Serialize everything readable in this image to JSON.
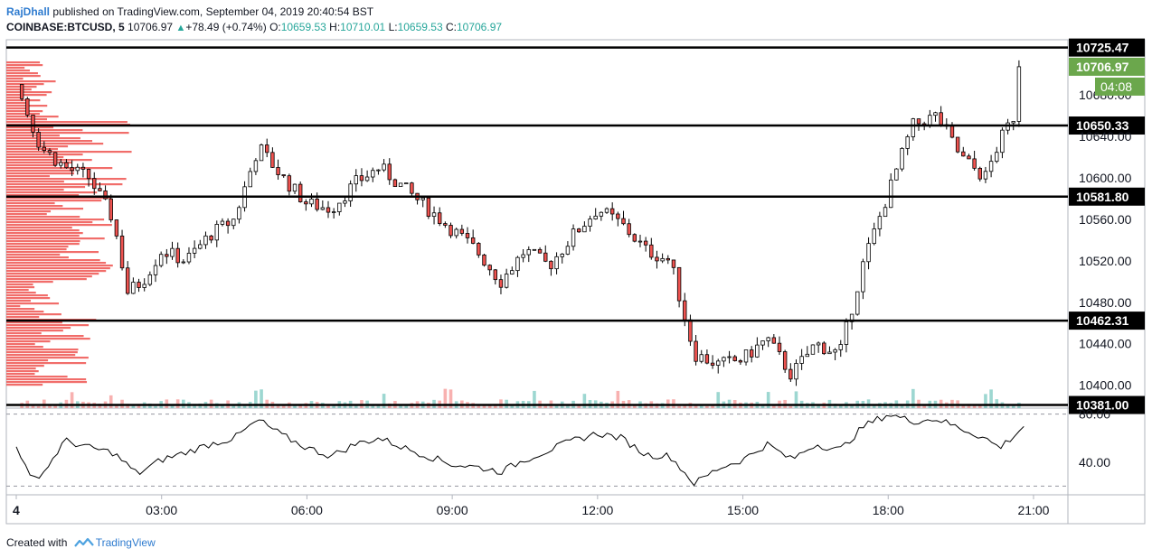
{
  "header": {
    "author": "RajDhall",
    "published": "published on TradingView.com, September 04, 2019 20:40:54 BST",
    "symbol": "COINBASE:BTCUSD, 5",
    "last": "10706.97",
    "change": "+78.49 (+0.74%)",
    "o_label": "O:",
    "o_value": "10659.53",
    "h_label": "H:",
    "h_value": "10710.01",
    "l_label": "L:",
    "l_value": "10659.53",
    "c_label": "C:",
    "c_value": "10706.97"
  },
  "footer": {
    "created_with": "Created with",
    "brand": "TradingView"
  },
  "colors": {
    "up": "#26a69a",
    "down": "#ef5350",
    "candle_up_fill": "#ffffff",
    "candle_outline": "#000000",
    "level_line": "#000000",
    "volume_profile": "#ef5350",
    "price_badge": "#6ba74c",
    "rsi_line": "#000000"
  },
  "chart_data": {
    "type": "candlestick",
    "symbol": "COINBASE:BTCUSD",
    "interval": "5",
    "x_ticks": [
      "4",
      "03:00",
      "06:00",
      "09:00",
      "12:00",
      "15:00",
      "18:00",
      "21:00"
    ],
    "y_ticks": [
      10400,
      10440,
      10480,
      10520,
      10560,
      10600,
      10640,
      10680
    ],
    "y_tick_labels": [
      "10400.00",
      "10440.00",
      "10480.00",
      "10520.00",
      "10560.00",
      "10600.00",
      "10640.00",
      "10680.00"
    ],
    "ylim": [
      10378,
      10733
    ],
    "horizontal_levels": [
      10725.47,
      10650.33,
      10581.8,
      10462.31,
      10381.0
    ],
    "level_labels": [
      "10725.47",
      "10650.33",
      "10581.80",
      "10462.31",
      "10381.00"
    ],
    "last_price_label": "10706.97",
    "countdown_label": "04:08",
    "close_path_hourly": [
      {
        "t": 0,
        "p": 10690
      },
      {
        "t": 0.5,
        "p": 10630
      },
      {
        "t": 1,
        "p": 10610
      },
      {
        "t": 1.5,
        "p": 10600
      },
      {
        "t": 2,
        "p": 10560
      },
      {
        "t": 2.3,
        "p": 10490
      },
      {
        "t": 2.6,
        "p": 10500
      },
      {
        "t": 3,
        "p": 10530
      },
      {
        "t": 3.5,
        "p": 10520
      },
      {
        "t": 4,
        "p": 10545
      },
      {
        "t": 4.5,
        "p": 10560
      },
      {
        "t": 5,
        "p": 10630
      },
      {
        "t": 5.5,
        "p": 10600
      },
      {
        "t": 6,
        "p": 10575
      },
      {
        "t": 6.5,
        "p": 10570
      },
      {
        "t": 7,
        "p": 10595
      },
      {
        "t": 7.5,
        "p": 10610
      },
      {
        "t": 8,
        "p": 10590
      },
      {
        "t": 8.5,
        "p": 10570
      },
      {
        "t": 9,
        "p": 10550
      },
      {
        "t": 9.5,
        "p": 10530
      },
      {
        "t": 10,
        "p": 10500
      },
      {
        "t": 10.5,
        "p": 10530
      },
      {
        "t": 11,
        "p": 10515
      },
      {
        "t": 11.5,
        "p": 10545
      },
      {
        "t": 12,
        "p": 10570
      },
      {
        "t": 12.5,
        "p": 10555
      },
      {
        "t": 13,
        "p": 10530
      },
      {
        "t": 13.5,
        "p": 10520
      },
      {
        "t": 14,
        "p": 10430
      },
      {
        "t": 14.5,
        "p": 10420
      },
      {
        "t": 15,
        "p": 10425
      },
      {
        "t": 15.5,
        "p": 10445
      },
      {
        "t": 16,
        "p": 10410
      },
      {
        "t": 16.5,
        "p": 10440
      },
      {
        "t": 17,
        "p": 10430
      },
      {
        "t": 17.5,
        "p": 10520
      },
      {
        "t": 18,
        "p": 10585
      },
      {
        "t": 18.5,
        "p": 10650
      },
      {
        "t": 19,
        "p": 10660
      },
      {
        "t": 19.5,
        "p": 10620
      },
      {
        "t": 20,
        "p": 10600
      },
      {
        "t": 20.3,
        "p": 10635
      },
      {
        "t": 20.6,
        "p": 10660
      },
      {
        "t": 20.7,
        "p": 10706.97
      }
    ],
    "rsi": {
      "ylim": [
        15,
        85
      ],
      "y_ticks": [
        40,
        80
      ],
      "y_tick_labels": [
        "40.00",
        "80.00"
      ],
      "dashed_levels": [
        80,
        20
      ],
      "values": [
        {
          "t": 0,
          "v": 55
        },
        {
          "t": 0.3,
          "v": 25
        },
        {
          "t": 0.6,
          "v": 33
        },
        {
          "t": 1,
          "v": 58
        },
        {
          "t": 1.5,
          "v": 52
        },
        {
          "t": 2,
          "v": 48
        },
        {
          "t": 2.5,
          "v": 30
        },
        {
          "t": 3,
          "v": 42
        },
        {
          "t": 3.5,
          "v": 48
        },
        {
          "t": 4,
          "v": 55
        },
        {
          "t": 4.5,
          "v": 60
        },
        {
          "t": 5,
          "v": 75
        },
        {
          "t": 5.5,
          "v": 62
        },
        {
          "t": 6,
          "v": 52
        },
        {
          "t": 6.5,
          "v": 45
        },
        {
          "t": 7,
          "v": 55
        },
        {
          "t": 7.5,
          "v": 60
        },
        {
          "t": 8,
          "v": 52
        },
        {
          "t": 8.5,
          "v": 45
        },
        {
          "t": 9,
          "v": 38
        },
        {
          "t": 9.5,
          "v": 36
        },
        {
          "t": 10,
          "v": 32
        },
        {
          "t": 10.5,
          "v": 42
        },
        {
          "t": 11,
          "v": 50
        },
        {
          "t": 11.5,
          "v": 58
        },
        {
          "t": 12,
          "v": 64
        },
        {
          "t": 12.5,
          "v": 60
        },
        {
          "t": 13,
          "v": 46
        },
        {
          "t": 13.5,
          "v": 45
        },
        {
          "t": 14,
          "v": 22
        },
        {
          "t": 14.5,
          "v": 35
        },
        {
          "t": 15,
          "v": 42
        },
        {
          "t": 15.5,
          "v": 55
        },
        {
          "t": 16,
          "v": 42
        },
        {
          "t": 16.5,
          "v": 55
        },
        {
          "t": 17,
          "v": 50
        },
        {
          "t": 17.5,
          "v": 70
        },
        {
          "t": 18,
          "v": 80
        },
        {
          "t": 18.5,
          "v": 74
        },
        {
          "t": 19,
          "v": 76
        },
        {
          "t": 19.5,
          "v": 68
        },
        {
          "t": 20,
          "v": 60
        },
        {
          "t": 20.3,
          "v": 52
        },
        {
          "t": 20.6,
          "v": 62
        },
        {
          "t": 20.8,
          "v": 70
        }
      ]
    }
  }
}
